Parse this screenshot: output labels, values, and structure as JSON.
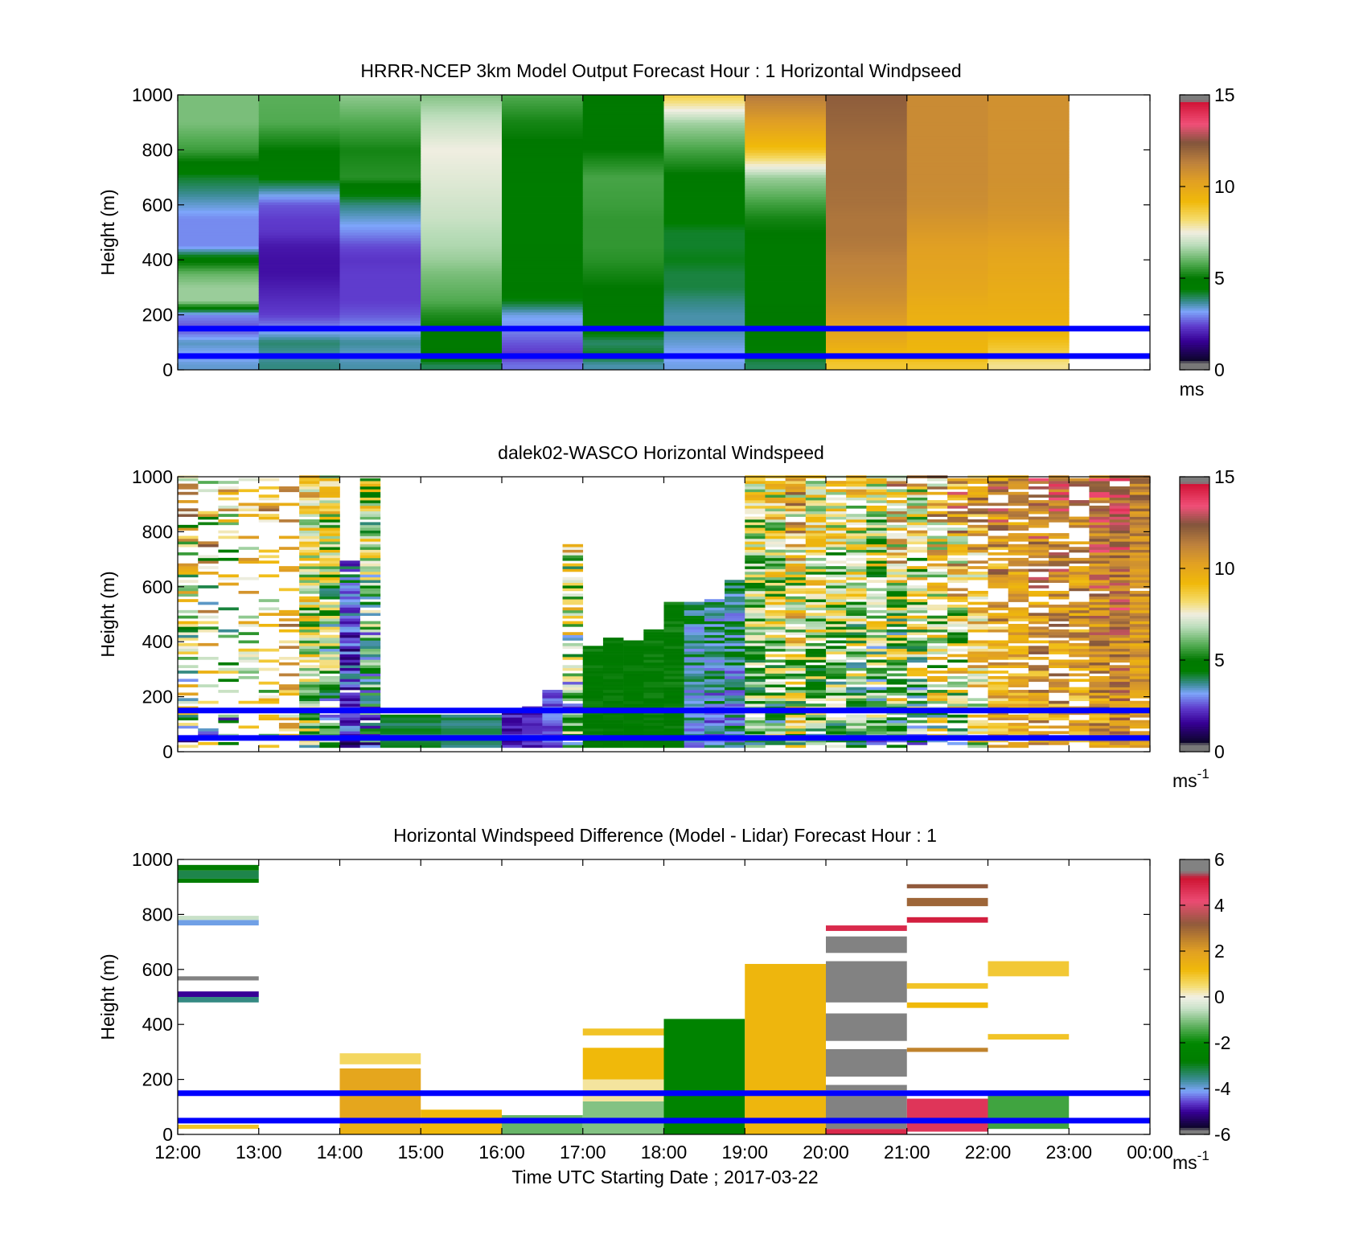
{
  "figure": {
    "xlabel": "Time UTC  Starting Date ; 2017-03-22",
    "x_ticks": [
      "12:00",
      "13:00",
      "14:00",
      "15:00",
      "16:00",
      "17:00",
      "18:00",
      "19:00",
      "20:00",
      "21:00",
      "22:00",
      "23:00",
      "00:00"
    ],
    "y_ticks": [
      "0",
      "200",
      "400",
      "600",
      "800",
      "1000"
    ],
    "ylabel": "Height (m)",
    "reference_lines_m": [
      50,
      150
    ],
    "reference_line_color": "#0000ff"
  },
  "chart_data": [
    {
      "type": "heatmap",
      "title": "HRRR-NCEP 3km Model Output   Forecast Hour : 1 Horizontal Windpseed",
      "xlabel": "",
      "ylabel": "Height (m)",
      "xlim_hours": [
        0,
        12
      ],
      "ylim": [
        0,
        1000
      ],
      "colorbar": {
        "min": 0,
        "max": 15,
        "ticks": [
          "0",
          "5",
          "10",
          "15"
        ],
        "unit": "ms"
      },
      "hours": [
        0,
        1,
        2,
        3,
        4,
        5,
        6,
        7,
        8,
        9,
        10
      ],
      "height_levels_m": [
        20,
        50,
        100,
        150,
        200,
        250,
        300,
        350,
        400,
        450,
        500,
        550,
        600,
        700,
        800,
        900,
        1000
      ],
      "values": [
        [
          3.4,
          3.1,
          3.5,
          2.5,
          3.0,
          6.5,
          6.5,
          6.0,
          4.8,
          3.0,
          3.0,
          3.0,
          3.4,
          4.2,
          5.6,
          6.2,
          6.2
        ],
        [
          3.8,
          3.6,
          3.9,
          3.0,
          2.4,
          2.2,
          2.0,
          1.8,
          1.8,
          1.9,
          2.3,
          2.4,
          2.6,
          4.5,
          5.0,
          5.8,
          5.9
        ],
        [
          3.6,
          3.4,
          3.7,
          3.1,
          2.6,
          2.4,
          2.4,
          2.4,
          2.3,
          2.5,
          3.0,
          3.4,
          3.8,
          5.4,
          5.2,
          5.8,
          6.4
        ],
        [
          4.0,
          5.0,
          4.7,
          5.0,
          5.3,
          5.8,
          6.0,
          6.2,
          6.5,
          6.7,
          6.8,
          7.0,
          7.1,
          7.3,
          7.5,
          7.0,
          6.3
        ],
        [
          2.8,
          2.3,
          2.6,
          3.0,
          3.3,
          4.3,
          4.8,
          4.6,
          4.6,
          4.6,
          4.5,
          4.5,
          4.5,
          4.6,
          4.9,
          5.2,
          5.8
        ],
        [
          3.6,
          4.3,
          3.9,
          4.7,
          4.8,
          4.9,
          5.0,
          5.2,
          5.4,
          5.5,
          5.5,
          5.5,
          5.6,
          5.7,
          5.0,
          4.8,
          5.0
        ],
        [
          3.3,
          3.1,
          3.4,
          3.6,
          3.6,
          3.8,
          4.1,
          4.1,
          4.3,
          4.2,
          4.2,
          4.5,
          4.5,
          4.9,
          5.7,
          6.6,
          8.6
        ],
        [
          4.0,
          4.3,
          4.5,
          4.8,
          4.9,
          4.8,
          4.8,
          4.8,
          4.8,
          4.8,
          5.0,
          5.2,
          5.6,
          6.5,
          9.0,
          10.3,
          11.5
        ],
        [
          8.8,
          9.2,
          9.8,
          10.2,
          10.5,
          10.8,
          11.0,
          11.2,
          11.3,
          11.5,
          11.6,
          11.6,
          11.7,
          11.8,
          11.8,
          12.0,
          12.2
        ],
        [
          8.8,
          9.3,
          9.4,
          9.6,
          9.6,
          9.8,
          10.0,
          10.1,
          10.2,
          10.3,
          10.5,
          10.7,
          10.9,
          11.0,
          11.0,
          11.0,
          11.0
        ],
        [
          8.0,
          8.5,
          9.0,
          9.5,
          9.6,
          9.7,
          9.8,
          9.9,
          10.0,
          10.2,
          10.4,
          10.6,
          10.7,
          10.8,
          10.8,
          10.8,
          10.8
        ]
      ]
    },
    {
      "type": "heatmap",
      "title": "dalek02-WASCO  Horizontal Windspeed",
      "xlabel": "",
      "ylabel": "Height (m)",
      "xlim_hours": [
        0,
        12
      ],
      "ylim": [
        0,
        1000
      ],
      "colorbar": {
        "min": 0,
        "max": 15,
        "ticks": [
          "0",
          "5",
          "10",
          "15"
        ],
        "unit": "ms",
        "unit_exponent": "-1"
      },
      "columns": [
        {
          "t0": 0.0,
          "t1": 0.25,
          "top": 1000,
          "fill": 0.55,
          "lo": 1.0,
          "hi": 14.0
        },
        {
          "t0": 0.25,
          "t1": 0.5,
          "top": 1000,
          "fill": 0.3,
          "lo": 1.0,
          "hi": 14.0
        },
        {
          "t0": 0.5,
          "t1": 0.75,
          "top": 1000,
          "fill": 0.3,
          "lo": 1.0,
          "hi": 12.0
        },
        {
          "t0": 0.75,
          "t1": 1.0,
          "top": 1000,
          "fill": 0.28,
          "lo": 4.0,
          "hi": 12.0
        },
        {
          "t0": 1.0,
          "t1": 1.25,
          "top": 1000,
          "fill": 0.3,
          "lo": 3.0,
          "hi": 13.0
        },
        {
          "t0": 1.25,
          "t1": 1.5,
          "top": 1000,
          "fill": 0.25,
          "lo": 6.0,
          "hi": 14.0
        },
        {
          "t0": 1.5,
          "t1": 1.75,
          "top": 1000,
          "fill": 0.95,
          "lo": 3.5,
          "hi": 11.5
        },
        {
          "t0": 1.75,
          "t1": 2.0,
          "top": 1000,
          "fill": 0.95,
          "lo": 2.0,
          "hi": 10.5
        },
        {
          "t0": 2.0,
          "t1": 2.25,
          "top": 700,
          "fill": 0.95,
          "lo": 0.5,
          "hi": 5.0
        },
        {
          "t0": 2.25,
          "t1": 2.5,
          "top": 1000,
          "fill": 0.95,
          "lo": 1.0,
          "hi": 10.0
        },
        {
          "t0": 2.5,
          "t1": 3.25,
          "top": 130,
          "fill": 1.0,
          "lo": 3.8,
          "hi": 4.6
        },
        {
          "t0": 3.25,
          "t1": 4.0,
          "top": 130,
          "fill": 1.0,
          "lo": 3.6,
          "hi": 4.4
        },
        {
          "t0": 4.0,
          "t1": 4.25,
          "top": 150,
          "fill": 1.0,
          "lo": 1.0,
          "hi": 3.5
        },
        {
          "t0": 4.25,
          "t1": 4.5,
          "top": 160,
          "fill": 1.0,
          "lo": 1.5,
          "hi": 3.6
        },
        {
          "t0": 4.5,
          "t1": 4.75,
          "top": 220,
          "fill": 1.0,
          "lo": 2.0,
          "hi": 3.6
        },
        {
          "t0": 4.75,
          "t1": 5.0,
          "top": 750,
          "fill": 0.75,
          "lo": 1.5,
          "hi": 12.0
        },
        {
          "t0": 5.0,
          "t1": 5.25,
          "top": 380,
          "fill": 1.0,
          "lo": 4.5,
          "hi": 5.5
        },
        {
          "t0": 5.25,
          "t1": 5.5,
          "top": 410,
          "fill": 1.0,
          "lo": 4.6,
          "hi": 5.4
        },
        {
          "t0": 5.5,
          "t1": 5.75,
          "top": 400,
          "fill": 1.0,
          "lo": 4.4,
          "hi": 5.4
        },
        {
          "t0": 5.75,
          "t1": 6.0,
          "top": 440,
          "fill": 1.0,
          "lo": 4.4,
          "hi": 5.6
        },
        {
          "t0": 6.0,
          "t1": 6.25,
          "top": 540,
          "fill": 1.0,
          "lo": 4.4,
          "hi": 5.6
        },
        {
          "t0": 6.25,
          "t1": 6.5,
          "top": 540,
          "fill": 1.0,
          "lo": 2.5,
          "hi": 5.0
        },
        {
          "t0": 6.5,
          "t1": 6.75,
          "top": 550,
          "fill": 1.0,
          "lo": 2.0,
          "hi": 5.5
        },
        {
          "t0": 6.75,
          "t1": 7.0,
          "top": 620,
          "fill": 1.0,
          "lo": 2.0,
          "hi": 5.8
        },
        {
          "t0": 7.0,
          "t1": 7.25,
          "top": 1000,
          "fill": 0.95,
          "lo": 3.0,
          "hi": 10.0
        },
        {
          "t0": 7.25,
          "t1": 7.5,
          "top": 1000,
          "fill": 0.9,
          "lo": 3.0,
          "hi": 11.0
        },
        {
          "t0": 7.5,
          "t1": 7.75,
          "top": 1000,
          "fill": 0.9,
          "lo": 3.0,
          "hi": 13.0
        },
        {
          "t0": 7.75,
          "t1": 8.0,
          "top": 1000,
          "fill": 0.9,
          "lo": 3.0,
          "hi": 11.0
        },
        {
          "t0": 8.0,
          "t1": 8.25,
          "top": 1000,
          "fill": 0.85,
          "lo": 3.0,
          "hi": 10.5
        },
        {
          "t0": 8.25,
          "t1": 8.5,
          "top": 1000,
          "fill": 0.85,
          "lo": 2.5,
          "hi": 11.0
        },
        {
          "t0": 8.5,
          "t1": 8.75,
          "top": 1000,
          "fill": 0.85,
          "lo": 2.0,
          "hi": 11.0
        },
        {
          "t0": 8.75,
          "t1": 9.0,
          "top": 1000,
          "fill": 0.8,
          "lo": 1.5,
          "hi": 13.0
        },
        {
          "t0": 9.0,
          "t1": 9.25,
          "top": 1000,
          "fill": 0.8,
          "lo": 2.0,
          "hi": 12.0
        },
        {
          "t0": 9.25,
          "t1": 9.5,
          "top": 1000,
          "fill": 0.75,
          "lo": 3.0,
          "hi": 13.0
        },
        {
          "t0": 9.5,
          "t1": 9.75,
          "top": 1000,
          "fill": 0.75,
          "lo": 3.0,
          "hi": 13.5
        },
        {
          "t0": 9.75,
          "t1": 10.0,
          "top": 1000,
          "fill": 0.7,
          "lo": 5.0,
          "hi": 13.0
        },
        {
          "t0": 10.0,
          "t1": 10.25,
          "top": 1000,
          "fill": 0.75,
          "lo": 7.0,
          "hi": 13.5
        },
        {
          "t0": 10.25,
          "t1": 10.5,
          "top": 1000,
          "fill": 0.75,
          "lo": 8.0,
          "hi": 12.0
        },
        {
          "t0": 10.5,
          "t1": 10.75,
          "top": 1000,
          "fill": 0.7,
          "lo": 8.0,
          "hi": 14.0
        },
        {
          "t0": 10.75,
          "t1": 11.0,
          "top": 1000,
          "fill": 0.7,
          "lo": 8.0,
          "hi": 14.0
        },
        {
          "t0": 11.0,
          "t1": 11.25,
          "top": 1000,
          "fill": 0.7,
          "lo": 8.0,
          "hi": 13.0
        },
        {
          "t0": 11.25,
          "t1": 11.5,
          "top": 1000,
          "fill": 0.98,
          "lo": 8.5,
          "hi": 14.0
        },
        {
          "t0": 11.5,
          "t1": 11.75,
          "top": 1000,
          "fill": 0.98,
          "lo": 9.0,
          "hi": 14.5
        },
        {
          "t0": 11.75,
          "t1": 12.0,
          "top": 1000,
          "fill": 0.95,
          "lo": 9.0,
          "hi": 12.5
        }
      ]
    },
    {
      "type": "heatmap",
      "title": "Horizontal Windspeed Difference (Model - Lidar) Forecast Hour : 1",
      "xlabel": "Time UTC  Starting Date ; 2017-03-22",
      "ylabel": "Height (m)",
      "xlim_hours": [
        0,
        12
      ],
      "ylim": [
        0,
        1000
      ],
      "colorbar": {
        "min": -6,
        "max": 6,
        "ticks": [
          "-6",
          "-4",
          "-2",
          "0",
          "2",
          "4",
          "6"
        ],
        "unit": "ms",
        "unit_exponent": "-1"
      },
      "segments": [
        {
          "t0": 0,
          "t1": 1,
          "y0": 20,
          "y1": 35,
          "v": 1.0
        },
        {
          "t0": 0,
          "t1": 1,
          "y0": 480,
          "y1": 500,
          "v": -3.5
        },
        {
          "t0": 0,
          "t1": 1,
          "y0": 500,
          "y1": 520,
          "v": -5.0
        },
        {
          "t0": 0,
          "t1": 1,
          "y0": 560,
          "y1": 575,
          "v": 6.0
        },
        {
          "t0": 0,
          "t1": 1,
          "y0": 760,
          "y1": 780,
          "v": -4.0
        },
        {
          "t0": 0,
          "t1": 1,
          "y0": 780,
          "y1": 795,
          "v": -0.5
        },
        {
          "t0": 0,
          "t1": 1,
          "y0": 915,
          "y1": 930,
          "v": -2.8
        },
        {
          "t0": 0,
          "t1": 1,
          "y0": 930,
          "y1": 960,
          "v": -3.2
        },
        {
          "t0": 0,
          "t1": 1,
          "y0": 960,
          "y1": 980,
          "v": -2.8
        },
        {
          "t0": 2,
          "t1": 3,
          "y0": 0,
          "y1": 60,
          "v": 1.5
        },
        {
          "t0": 2,
          "t1": 3,
          "y0": 60,
          "y1": 240,
          "v": 1.8
        },
        {
          "t0": 2,
          "t1": 3,
          "y0": 255,
          "y1": 295,
          "v": 0.6
        },
        {
          "t0": 3,
          "t1": 4,
          "y0": 0,
          "y1": 90,
          "v": 1.2
        },
        {
          "t0": 4,
          "t1": 5,
          "y0": 0,
          "y1": 70,
          "v": -1.2
        },
        {
          "t0": 5,
          "t1": 6,
          "y0": 0,
          "y1": 120,
          "v": -1.0
        },
        {
          "t0": 5,
          "t1": 6,
          "y0": 120,
          "y1": 200,
          "v": 0.3
        },
        {
          "t0": 5,
          "t1": 6,
          "y0": 200,
          "y1": 315,
          "v": 1.2
        },
        {
          "t0": 5,
          "t1": 6,
          "y0": 360,
          "y1": 385,
          "v": 1.0
        },
        {
          "t0": 6,
          "t1": 7,
          "y0": 0,
          "y1": 420,
          "v": -2.3
        },
        {
          "t0": 7,
          "t1": 8,
          "y0": 0,
          "y1": 620,
          "v": 1.3
        },
        {
          "t0": 8,
          "t1": 9,
          "y0": 0,
          "y1": 20,
          "v": 4.8
        },
        {
          "t0": 8,
          "t1": 9,
          "y0": 20,
          "y1": 140,
          "v": 6.0
        },
        {
          "t0": 8,
          "t1": 9,
          "y0": 160,
          "y1": 180,
          "v": 6.0
        },
        {
          "t0": 8,
          "t1": 9,
          "y0": 210,
          "y1": 310,
          "v": 6.0
        },
        {
          "t0": 8,
          "t1": 9,
          "y0": 340,
          "y1": 440,
          "v": 6.0
        },
        {
          "t0": 8,
          "t1": 9,
          "y0": 480,
          "y1": 630,
          "v": 6.0
        },
        {
          "t0": 8,
          "t1": 9,
          "y0": 660,
          "y1": 720,
          "v": 6.0
        },
        {
          "t0": 8,
          "t1": 9,
          "y0": 740,
          "y1": 760,
          "v": 4.8
        },
        {
          "t0": 9,
          "t1": 10,
          "y0": 10,
          "y1": 130,
          "v": 4.6
        },
        {
          "t0": 9,
          "t1": 10,
          "y0": 300,
          "y1": 315,
          "v": 2.5
        },
        {
          "t0": 9,
          "t1": 10,
          "y0": 460,
          "y1": 480,
          "v": 1.2
        },
        {
          "t0": 9,
          "t1": 10,
          "y0": 530,
          "y1": 550,
          "v": 1.0
        },
        {
          "t0": 9,
          "t1": 10,
          "y0": 770,
          "y1": 790,
          "v": 5.0
        },
        {
          "t0": 9,
          "t1": 10,
          "y0": 830,
          "y1": 860,
          "v": 3.0
        },
        {
          "t0": 9,
          "t1": 10,
          "y0": 895,
          "y1": 910,
          "v": 3.2
        },
        {
          "t0": 10,
          "t1": 11,
          "y0": 20,
          "y1": 150,
          "v": -1.5
        },
        {
          "t0": 10,
          "t1": 11,
          "y0": 345,
          "y1": 365,
          "v": 1.0
        },
        {
          "t0": 10,
          "t1": 11,
          "y0": 575,
          "y1": 630,
          "v": 0.9
        }
      ]
    }
  ]
}
